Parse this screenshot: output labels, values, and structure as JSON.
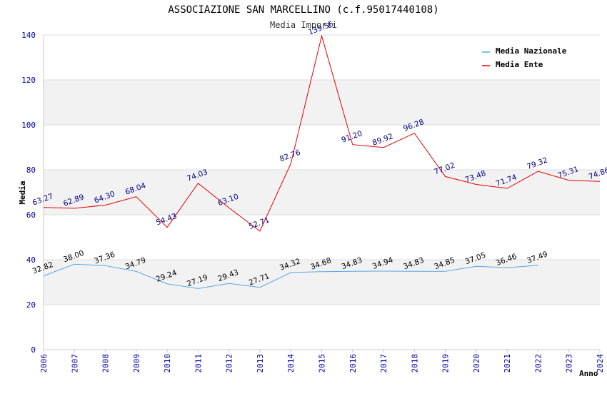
{
  "chart_data": {
    "type": "line",
    "title": "ASSOCIAZIONE SAN MARCELLINO (c.f.95017440108)",
    "subtitle": "Media Importi",
    "xlabel": "Anno",
    "ylabel": "Media",
    "ylim": [
      0,
      140
    ],
    "yticks": [
      "0",
      "20",
      "40",
      "60",
      "80",
      "100",
      "120",
      "140"
    ],
    "categories": [
      "2006",
      "2007",
      "2008",
      "2009",
      "2010",
      "2011",
      "2012",
      "2013",
      "2014",
      "2015",
      "2016",
      "2017",
      "2018",
      "2019",
      "2020",
      "2021",
      "2022",
      "2023",
      "2024"
    ],
    "legend_position": "top-right",
    "series": [
      {
        "name": "Media Nazionale",
        "color": "#5aa5e6",
        "values": [
          32.82,
          38.0,
          37.36,
          34.79,
          29.24,
          27.19,
          29.43,
          27.71,
          34.32,
          34.68,
          34.83,
          34.94,
          34.83,
          34.85,
          37.05,
          36.46,
          37.49,
          null,
          null
        ],
        "labels": [
          "32.82",
          "38.00",
          "37.36",
          "34.79",
          "29.24",
          "27.19",
          "29.43",
          "27.71",
          "34.32",
          "34.68",
          "34.83",
          "34.94",
          "34.83",
          "34.85",
          "37.05",
          "36.46",
          "37.49",
          null,
          null
        ]
      },
      {
        "name": "Media Ente",
        "color": "#e60000",
        "values": [
          63.27,
          62.89,
          64.3,
          68.04,
          54.43,
          74.03,
          63.1,
          52.71,
          82.76,
          139.56,
          91.2,
          89.92,
          96.28,
          77.02,
          73.48,
          71.74,
          79.32,
          75.31,
          74.86
        ],
        "labels": [
          "63.27",
          "62.89",
          "64.30",
          "68.04",
          "54.43",
          "74.03",
          "63.10",
          "52.71",
          "82.76",
          "139.56",
          "91.20",
          "89.92",
          "96.28",
          "77.02",
          "73.48",
          "71.74",
          "79.32",
          "75.31",
          "74.86"
        ]
      }
    ],
    "colors": {
      "band": "#f2f2f2",
      "grid": "#dddddd",
      "axis": "#cccccc",
      "tick_text": "#0000aa",
      "ente_label": "#000080",
      "naz_label": "#000000"
    }
  }
}
